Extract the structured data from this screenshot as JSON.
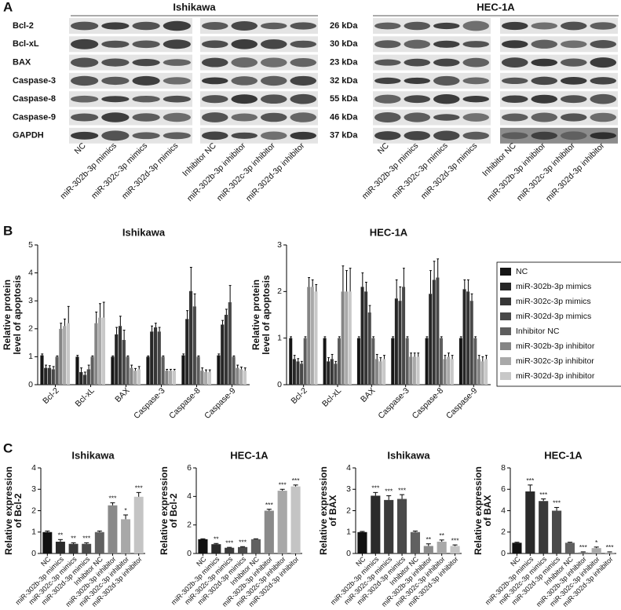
{
  "panels": [
    "A",
    "B",
    "C"
  ],
  "western_blot": {
    "cell_lines": [
      "Ishikawa",
      "HEC-1A"
    ],
    "proteins": [
      "Bcl-2",
      "Bcl-xL",
      "BAX",
      "Caspase-3",
      "Caspase-8",
      "Caspase-9",
      "GAPDH"
    ],
    "sizes": [
      "26 kDa",
      "30 kDa",
      "23 kDa",
      "32 kDa",
      "55 kDa",
      "46 kDa",
      "37 kDa"
    ],
    "lanes": [
      "NC",
      "miR-302b-3p mimics",
      "miR-302c-3p mimics",
      "miR-302d-3p mimics",
      "Inhibitor NC",
      "miR-302b-3p inhibitor",
      "miR-302c-3p inhibitor",
      "miR-302d-3p inhibitor"
    ]
  },
  "chart_data": [
    {
      "type": "bar",
      "title": "Ishikawa",
      "ylabel": [
        "Relative protein",
        "level of apoptosis"
      ],
      "categories": [
        "Bcl-2",
        "Bcl-xL",
        "BAX",
        "Caspase-3",
        "Caspase-8",
        "Caspase-9"
      ],
      "series": [
        {
          "color": "#151515",
          "values": [
            1.05,
            1.0,
            1.0,
            1.0,
            1.05,
            1.05
          ],
          "errors": [
            0.05,
            0.05,
            0.03,
            0.03,
            0.05,
            0.05
          ]
        },
        {
          "color": "#262626",
          "values": [
            0.6,
            0.45,
            1.8,
            1.9,
            2.35,
            2.15
          ],
          "errors": [
            0.1,
            0.15,
            0.25,
            0.2,
            0.3,
            0.15
          ]
        },
        {
          "color": "#363636",
          "values": [
            0.6,
            0.35,
            2.1,
            2.05,
            3.35,
            2.5
          ],
          "errors": [
            0.08,
            0.1,
            0.35,
            0.15,
            0.85,
            0.2
          ]
        },
        {
          "color": "#484848",
          "values": [
            0.55,
            0.55,
            1.6,
            1.9,
            2.8,
            2.95
          ],
          "errors": [
            0.1,
            0.15,
            0.35,
            0.15,
            0.45,
            0.6
          ]
        },
        {
          "color": "#5e5e5e",
          "values": [
            1.0,
            1.0,
            1.0,
            1.0,
            1.0,
            1.0
          ],
          "errors": [
            0.03,
            0.03,
            0.03,
            0.03,
            0.03,
            0.03
          ]
        },
        {
          "color": "#858585",
          "values": [
            2.0,
            2.2,
            0.6,
            0.5,
            0.5,
            0.6
          ],
          "errors": [
            0.2,
            0.4,
            0.1,
            0.05,
            0.1,
            0.1
          ]
        },
        {
          "color": "#a9a9a9",
          "values": [
            2.1,
            2.4,
            0.5,
            0.5,
            0.45,
            0.55
          ],
          "errors": [
            0.25,
            0.5,
            0.08,
            0.05,
            0.08,
            0.08
          ]
        },
        {
          "color": "#c8c8c8",
          "values": [
            2.2,
            2.4,
            0.55,
            0.5,
            0.45,
            0.5
          ],
          "errors": [
            0.6,
            0.55,
            0.1,
            0.05,
            0.08,
            0.1
          ]
        }
      ],
      "ylim": [
        0,
        5
      ],
      "yticks": [
        0,
        1,
        2,
        3,
        4,
        5
      ]
    },
    {
      "type": "bar",
      "title": "HEC-1A",
      "ylabel": [
        "Relative protein",
        "level of apoptosis"
      ],
      "categories": [
        "Bcl-2",
        "Bcl-xL",
        "BAX",
        "Caspase-3",
        "Caspase-8",
        "Caspase-9"
      ],
      "series": [
        {
          "name": "NC",
          "color": "#151515",
          "values": [
            1.0,
            1.0,
            1.0,
            1.0,
            1.0,
            1.0
          ],
          "errors": [
            0.03,
            0.03,
            0.03,
            0.03,
            0.03,
            0.03
          ]
        },
        {
          "name": "miR-302b-3p mimics",
          "color": "#262626",
          "values": [
            0.55,
            0.5,
            2.1,
            1.85,
            1.95,
            2.05
          ],
          "errors": [
            0.08,
            0.08,
            0.3,
            0.4,
            0.5,
            0.2
          ]
        },
        {
          "name": "miR-302c-3p mimics",
          "color": "#363636",
          "values": [
            0.5,
            0.55,
            2.0,
            1.8,
            2.25,
            2.0
          ],
          "errors": [
            0.06,
            0.1,
            0.2,
            0.3,
            0.4,
            0.25
          ]
        },
        {
          "name": "miR-302d-3p mimics",
          "color": "#484848",
          "values": [
            0.45,
            0.45,
            1.55,
            2.1,
            2.3,
            1.8
          ],
          "errors": [
            0.05,
            0.05,
            0.15,
            0.4,
            0.4,
            0.15
          ]
        },
        {
          "name": "Inhibitor NC",
          "color": "#5e5e5e",
          "values": [
            1.0,
            1.0,
            1.0,
            1.0,
            1.0,
            1.0
          ],
          "errors": [
            0.03,
            0.03,
            0.03,
            0.03,
            0.03,
            0.03
          ]
        },
        {
          "name": "miR-302b-3p inhibitor",
          "color": "#858585",
          "values": [
            2.1,
            2.0,
            0.55,
            0.6,
            0.55,
            0.55
          ],
          "errors": [
            0.2,
            0.55,
            0.1,
            0.08,
            0.08,
            0.08
          ]
        },
        {
          "name": "miR-302c-3p inhibitor",
          "color": "#a9a9a9",
          "values": [
            2.1,
            2.0,
            0.5,
            0.6,
            0.6,
            0.5
          ],
          "errors": [
            0.15,
            0.45,
            0.08,
            0.08,
            0.08,
            0.1
          ]
        },
        {
          "name": "miR-302d-3p inhibitor",
          "color": "#c8c8c8",
          "values": [
            2.0,
            2.0,
            0.55,
            0.6,
            0.55,
            0.55
          ],
          "errors": [
            0.15,
            0.5,
            0.08,
            0.08,
            0.08,
            0.08
          ]
        }
      ],
      "ylim": [
        0,
        3
      ],
      "yticks": [
        0,
        1,
        2,
        3
      ],
      "legend": "right"
    },
    {
      "type": "bar",
      "title": "Ishikawa",
      "ylabel": [
        "Relative expression",
        "of Bcl-2"
      ],
      "categories": [
        "NC",
        "miR-302b-3p mimics",
        "miR-302c-3p mimics",
        "miR-302d-3p mimics",
        "Inhibitor NC",
        "miR-302b-3p inhibitor",
        "miR-302c-3p inhibitor",
        "miR-302d-3p inhibitor"
      ],
      "values": [
        1.0,
        0.55,
        0.45,
        0.45,
        1.0,
        2.25,
        1.6,
        2.65
      ],
      "errors": [
        0.05,
        0.1,
        0.05,
        0.05,
        0.05,
        0.12,
        0.2,
        0.2
      ],
      "colors": [
        "#111111",
        "#2a2a2a",
        "#3a3a3a",
        "#4a4a4a",
        "#606060",
        "#8a8a8a",
        "#a8a8a8",
        "#c4c4c4"
      ],
      "annotations": [
        null,
        "**",
        "**",
        "***",
        null,
        "***",
        "*",
        "***"
      ],
      "ylim": [
        0,
        4
      ],
      "yticks": [
        0,
        1,
        2,
        3,
        4
      ]
    },
    {
      "type": "bar",
      "title": "HEC-1A",
      "ylabel": [
        "Relative expression",
        "of Bcl-2"
      ],
      "categories": [
        "NC",
        "miR-302b-3p mimics",
        "miR-302c-3p mimics",
        "miR-302d-3p mimics",
        "Inhibitor NC",
        "miR-302b-3p inhibitor",
        "miR-302c-3p inhibitor",
        "miR-302d-3p inhibitor"
      ],
      "values": [
        1.0,
        0.65,
        0.4,
        0.45,
        1.0,
        3.0,
        4.4,
        4.7
      ],
      "errors": [
        0.03,
        0.05,
        0.03,
        0.03,
        0.03,
        0.1,
        0.1,
        0.1
      ],
      "colors": [
        "#111111",
        "#2a2a2a",
        "#3a3a3a",
        "#4a4a4a",
        "#606060",
        "#8a8a8a",
        "#a8a8a8",
        "#c4c4c4"
      ],
      "annotations": [
        null,
        "**",
        "***",
        "***",
        null,
        "***",
        "***",
        "***"
      ],
      "ylim": [
        0,
        6
      ],
      "yticks": [
        0,
        2,
        4,
        6
      ]
    },
    {
      "type": "bar",
      "title": "Ishikawa",
      "ylabel": [
        "Relative expression",
        "of BAX"
      ],
      "categories": [
        "NC",
        "miR-302b-3p mimics",
        "miR-302c-3p mimics",
        "miR-302d-3p mimics",
        "Inhibitor NC",
        "miR-302b-3p inhibitor",
        "miR-302c-3p inhibitor",
        "miR-302d-3p inhibitor"
      ],
      "values": [
        1.0,
        2.7,
        2.5,
        2.55,
        1.0,
        0.35,
        0.55,
        0.35
      ],
      "errors": [
        0.03,
        0.15,
        0.2,
        0.2,
        0.05,
        0.1,
        0.08,
        0.05
      ],
      "colors": [
        "#111111",
        "#2a2a2a",
        "#3a3a3a",
        "#4a4a4a",
        "#606060",
        "#8a8a8a",
        "#a8a8a8",
        "#c4c4c4"
      ],
      "annotations": [
        null,
        "***",
        "***",
        "***",
        null,
        "**",
        "**",
        "***"
      ],
      "ylim": [
        0,
        4
      ],
      "yticks": [
        0,
        1,
        2,
        3,
        4
      ]
    },
    {
      "type": "bar",
      "title": "HEC-1A",
      "ylabel": [
        "Relative expression",
        "of BAX"
      ],
      "categories": [
        "NC",
        "miR-302b-3p mimics",
        "miR-302c-3p mimics",
        "miR-302d-3p mimics",
        "Inhibitor NC",
        "miR-302b-3p inhibitor",
        "miR-302c-3p inhibitor",
        "miR-302d-3p inhibitor"
      ],
      "values": [
        1.0,
        5.8,
        4.9,
        4.0,
        1.0,
        0.1,
        0.5,
        0.1
      ],
      "errors": [
        0.05,
        0.6,
        0.2,
        0.3,
        0.05,
        0.05,
        0.1,
        0.05
      ],
      "colors": [
        "#111111",
        "#2a2a2a",
        "#3a3a3a",
        "#4a4a4a",
        "#606060",
        "#8a8a8a",
        "#a8a8a8",
        "#c4c4c4"
      ],
      "annotations": [
        null,
        "***",
        "***",
        "***",
        null,
        "***",
        "*",
        "***"
      ],
      "ylim": [
        0,
        8
      ],
      "yticks": [
        0,
        2,
        4,
        6,
        8
      ]
    }
  ]
}
